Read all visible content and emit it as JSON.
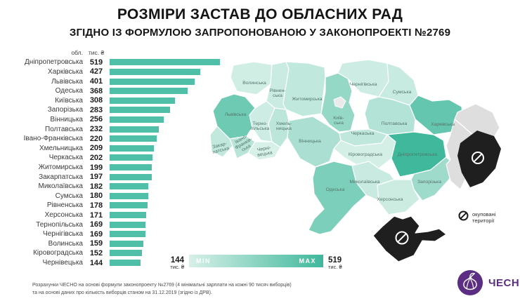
{
  "title": "РОЗМІРИ ЗАСТАВ ДО ОБЛАСНИХ РАД",
  "subtitle": "ЗГІДНО ІЗ ФОРМУЛОЮ ЗАПРОПОНОВАНОЮ У ЗАКОНОПРОЕКТІ №2769",
  "chart_data": {
    "type": "bar",
    "orientation": "horizontal",
    "col_headers": {
      "region": "обл.",
      "value": "тис. ₴"
    },
    "categories": [
      "Дніпропетровська",
      "Харківська",
      "Львівська",
      "Одеська",
      "Київська",
      "Запорізька",
      "Вінницька",
      "Полтавська",
      "Івано-Франківська",
      "Хмельницька",
      "Черкаська",
      "Житомирська",
      "Закарпатська",
      "Миколаївська",
      "Сумська",
      "Рівненська",
      "Херсонська",
      "Тернопільська",
      "Чернігівська",
      "Волинська",
      "Кіровоградська",
      "Чернівецька"
    ],
    "values": [
      519,
      427,
      401,
      368,
      308,
      283,
      256,
      232,
      220,
      209,
      202,
      199,
      197,
      182,
      180,
      178,
      171,
      169,
      169,
      159,
      152,
      144
    ],
    "xlim": [
      0,
      519
    ],
    "bar_color": "#4fc0a7"
  },
  "map": {
    "min_value": 144,
    "max_value": 519,
    "min_color": "#d7f0e8",
    "max_color": "#3fb89b",
    "occupied_fill": "#dedede",
    "occupied_overlay_fill": "#1f1f1f",
    "kyiv_city_fill": "#eaeaea",
    "label_color": "#54766c",
    "regions": [
      {
        "id": "volynska",
        "label_lines": [
          "Волинська"
        ],
        "value": 159
      },
      {
        "id": "rivnenska",
        "label_lines": [
          "Рівнен-",
          "ська"
        ],
        "value": 178
      },
      {
        "id": "zhytomyrska",
        "label_lines": [
          "Житомирська"
        ],
        "value": 199
      },
      {
        "id": "kyivska",
        "label_lines": [
          "Київ-",
          "ська"
        ],
        "value": 308
      },
      {
        "id": "chernihivska",
        "label_lines": [
          "Чернігівська"
        ],
        "value": 169
      },
      {
        "id": "sumska",
        "label_lines": [
          "Сумська"
        ],
        "value": 180
      },
      {
        "id": "poltavska",
        "label_lines": [
          "Полтавська"
        ],
        "value": 232
      },
      {
        "id": "kharkivska",
        "label_lines": [
          "Харківська"
        ],
        "value": 427
      },
      {
        "id": "cherkaska",
        "label_lines": [
          "Черкаська"
        ],
        "value": 202
      },
      {
        "id": "vinnytska",
        "label_lines": [
          "Вінницька"
        ],
        "value": 256
      },
      {
        "id": "kirovohradska",
        "label_lines": [
          "Кіровоградська"
        ],
        "value": 152
      },
      {
        "id": "dnipropetrovska",
        "label_lines": [
          "Дніпропетровська"
        ],
        "value": 519
      },
      {
        "id": "zaporizka",
        "label_lines": [
          "Запорізька"
        ],
        "value": 283
      },
      {
        "id": "mykolaivska",
        "label_lines": [
          "Миколаївська"
        ],
        "value": 182
      },
      {
        "id": "khersonska",
        "label_lines": [
          "Херсонська"
        ],
        "value": 171
      },
      {
        "id": "odeska",
        "label_lines": [
          "Одеська"
        ],
        "value": 368
      },
      {
        "id": "lvivska",
        "label_lines": [
          "Львівська"
        ],
        "value": 401
      },
      {
        "id": "ternopilska",
        "label_lines": [
          "Терно-",
          "пільська"
        ],
        "value": 169
      },
      {
        "id": "khmelnytska",
        "label_lines": [
          "Хмель-",
          "ницька"
        ],
        "value": 209
      },
      {
        "id": "zakarpatska",
        "label_lines": [
          "Закар-",
          "патська"
        ],
        "value": 197
      },
      {
        "id": "ivano-frankivska",
        "label_lines": [
          "Івано-",
          "Франків-",
          "ська"
        ],
        "value": 220
      },
      {
        "id": "chernivetska",
        "label_lines": [
          "Черні-",
          "вецька"
        ],
        "value": 144
      },
      {
        "id": "luhanska",
        "label_lines": [],
        "occupied": true
      },
      {
        "id": "donetska",
        "label_lines": [],
        "occupied": true
      },
      {
        "id": "crimea",
        "label_lines": [],
        "occupied": true,
        "overlay": true
      }
    ]
  },
  "scale_legend": {
    "min_label": "MIN",
    "max_label": "MAX",
    "min_value": "144",
    "max_value": "519",
    "unit": "тис. ₴"
  },
  "occupied_legend": {
    "line1": "окуповані",
    "line2": "території"
  },
  "footer": {
    "line1": "Розрахунки ЧЕСНО на основі формули законопроекту №2769 (4 мінімальні зарплати на кожні 90 тисяч виборців)",
    "line2": "та на основі даних про кількість виборців станом на 31.12.2019 (згідно із ДРВ)."
  },
  "logo": {
    "name": "ЧЕСНО",
    "color": "#5b2d83"
  }
}
